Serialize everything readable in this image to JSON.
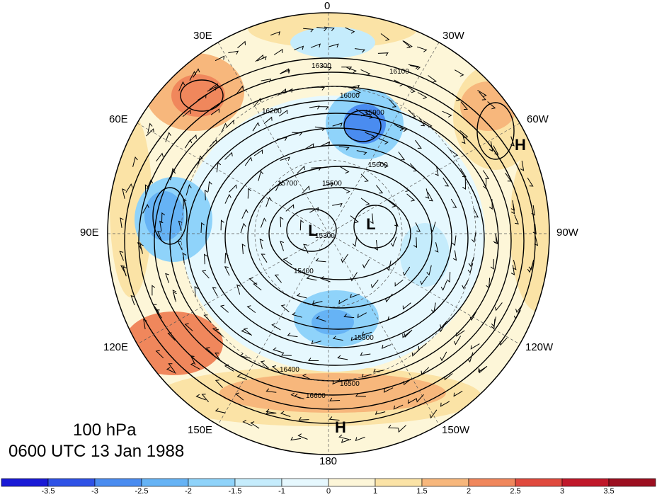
{
  "title": {
    "level": "100 hPa",
    "time": "0600 UTC 13 Jan 1988"
  },
  "longitude_labels": [
    "0",
    "30W",
    "60W",
    "90W",
    "120W",
    "150W",
    "180",
    "150E",
    "120E",
    "90E",
    "60E",
    "30E"
  ],
  "pressure_centers": {
    "lows": [
      "L",
      "L"
    ],
    "highs": [
      "H",
      "H"
    ]
  },
  "contour_labels": [
    "15300",
    "15400",
    "15500",
    "15600",
    "15700",
    "15800",
    "15900",
    "16000",
    "16100",
    "16200",
    "16300",
    "16400",
    "16500",
    "16600"
  ],
  "colorbar": {
    "ticks": [
      "-3.5",
      "-3",
      "-2.5",
      "-2",
      "-1.5",
      "-1",
      "0",
      "1",
      "1.5",
      "2",
      "2.5",
      "3",
      "3.5"
    ],
    "colors": [
      "#1a1ad6",
      "#2f52e6",
      "#4a8cf0",
      "#66b3f5",
      "#8fd3fa",
      "#c5ecfc",
      "#e6f8fe",
      "#fdf6d8",
      "#fbe3a6",
      "#f7b77c",
      "#f0875c",
      "#e04a3e",
      "#c0182a",
      "#9c0f20"
    ]
  },
  "colors": {
    "contour": "#000000",
    "outline": "#000000",
    "barb": "#000000"
  }
}
